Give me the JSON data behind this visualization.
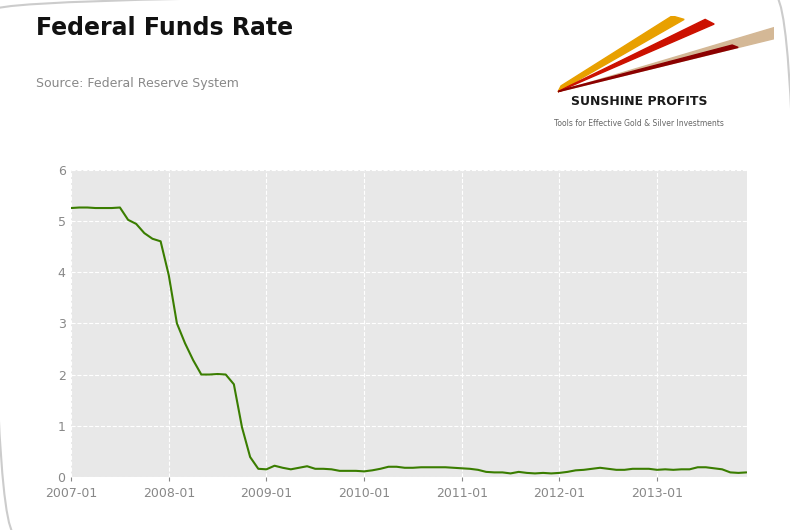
{
  "title": "Federal Funds Rate",
  "source": "Source: Federal Reserve System",
  "line_color": "#3a7d00",
  "outer_bg_color": "#ffffff",
  "plot_bg_color": "#e8e8e8",
  "ylim": [
    0,
    6
  ],
  "yticks": [
    0,
    1,
    2,
    3,
    4,
    5,
    6
  ],
  "values": [
    5.25,
    5.26,
    5.26,
    5.25,
    5.25,
    5.25,
    5.26,
    5.02,
    4.94,
    4.76,
    4.65,
    4.6,
    3.94,
    3.0,
    2.61,
    2.28,
    2.0,
    2.0,
    2.01,
    2.0,
    1.81,
    0.97,
    0.39,
    0.16,
    0.15,
    0.22,
    0.18,
    0.15,
    0.18,
    0.21,
    0.16,
    0.16,
    0.15,
    0.12,
    0.12,
    0.12,
    0.11,
    0.13,
    0.16,
    0.2,
    0.2,
    0.18,
    0.18,
    0.19,
    0.19,
    0.19,
    0.19,
    0.18,
    0.17,
    0.16,
    0.14,
    0.1,
    0.09,
    0.09,
    0.07,
    0.1,
    0.08,
    0.07,
    0.08,
    0.07,
    0.08,
    0.1,
    0.13,
    0.14,
    0.16,
    0.18,
    0.16,
    0.14,
    0.14,
    0.16,
    0.16,
    0.16,
    0.14,
    0.15,
    0.14,
    0.15,
    0.15,
    0.19,
    0.19,
    0.17,
    0.15,
    0.09,
    0.08,
    0.09
  ],
  "xtick_labels": [
    "2007-01",
    "2008-01",
    "2009-01",
    "2010-01",
    "2011-01",
    "2012-01",
    "2013-01"
  ],
  "xtick_positions": [
    0,
    12,
    24,
    36,
    48,
    60,
    72
  ],
  "logo_company": "SUNSHINE PROFITS",
  "logo_tagline": "Tools for Effective Gold & Silver Investments",
  "border_color": "#cccccc",
  "tick_color": "#888888",
  "grid_color": "#ffffff"
}
